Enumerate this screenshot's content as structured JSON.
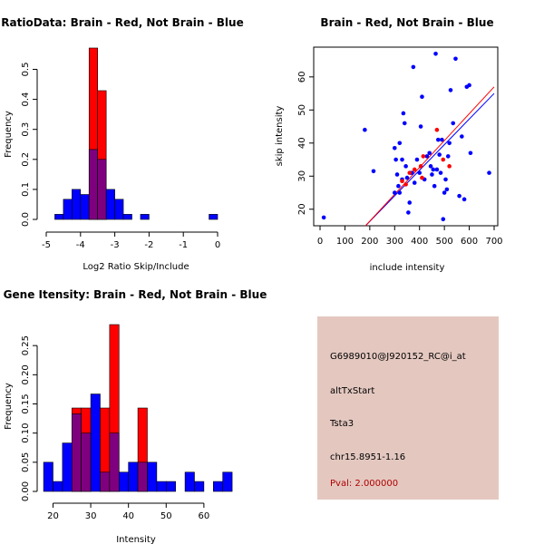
{
  "colors": {
    "brain": "#ff0000",
    "not_brain": "#0000ff",
    "overlap": "#7f007f",
    "info_bg": "#e4c8c0",
    "pval_text": "#b00000"
  },
  "chart_data": [
    {
      "type": "bar",
      "title": "RatioData: Brain - Red, Not Brain - Blue",
      "xlabel": "Log2 Ratio Skip/Include",
      "ylabel": "Frequency",
      "xlim": [
        -5,
        0
      ],
      "ylim": [
        0,
        0.58
      ],
      "xticks": [
        -5,
        -4,
        -3,
        -2,
        -1,
        0
      ],
      "yticks": [
        0.0,
        0.1,
        0.2,
        0.3,
        0.4,
        0.5
      ],
      "ytick_labels": [
        "0.0",
        "0.1",
        "0.2",
        "0.3",
        "0.4",
        "0.5"
      ],
      "bin_edges": [
        -4.75,
        -4.5,
        -4.25,
        -4.0,
        -3.75,
        -3.5,
        -3.25,
        -3.0,
        -2.75,
        -2.5,
        -2.25,
        -2.0,
        -1.75,
        -1.5,
        -1.25,
        -1.0,
        -0.75,
        -0.5,
        -0.25,
        0.0
      ],
      "series": [
        {
          "name": "Not Brain",
          "color": "blue",
          "values": [
            0.017,
            0.067,
            0.1,
            0.083,
            0.233,
            0.2,
            0.1,
            0.067,
            0.017,
            0,
            0.017,
            0,
            0,
            0,
            0,
            0,
            0,
            0,
            0.017
          ]
        },
        {
          "name": "Brain",
          "color": "red",
          "values": [
            0,
            0,
            0,
            0,
            0.571,
            0.429,
            0,
            0,
            0,
            0,
            0,
            0,
            0,
            0,
            0,
            0,
            0,
            0,
            0
          ]
        }
      ]
    },
    {
      "type": "scatter",
      "title": "Brain - Red, Not Brain - Blue",
      "xlabel": "include intensity",
      "ylabel": "skip intensity",
      "xlim": [
        0,
        700
      ],
      "ylim": [
        15,
        69
      ],
      "xticks": [
        0,
        100,
        200,
        300,
        400,
        500,
        600,
        700
      ],
      "yticks": [
        20,
        30,
        40,
        50,
        60
      ],
      "series": [
        {
          "name": "Not Brain",
          "color": "blue",
          "points": [
            [
              15,
              17.5
            ],
            [
              180,
              44
            ],
            [
              215,
              31.5
            ],
            [
              300,
              25
            ],
            [
              305,
              35
            ],
            [
              310,
              30.5
            ],
            [
              315,
              27
            ],
            [
              320,
              25
            ],
            [
              330,
              29
            ],
            [
              335,
              49
            ],
            [
              340,
              46
            ],
            [
              345,
              33
            ],
            [
              350,
              29.5
            ],
            [
              355,
              19
            ],
            [
              360,
              22
            ],
            [
              365,
              31
            ],
            [
              370,
              31
            ],
            [
              375,
              63
            ],
            [
              380,
              28
            ],
            [
              390,
              35
            ],
            [
              400,
              31
            ],
            [
              405,
              45
            ],
            [
              410,
              54
            ],
            [
              420,
              29
            ],
            [
              430,
              36
            ],
            [
              440,
              37
            ],
            [
              445,
              33
            ],
            [
              450,
              30.5
            ],
            [
              455,
              32
            ],
            [
              460,
              27
            ],
            [
              465,
              67
            ],
            [
              470,
              32
            ],
            [
              475,
              41
            ],
            [
              480,
              36.5
            ],
            [
              485,
              31
            ],
            [
              490,
              41
            ],
            [
              495,
              17
            ],
            [
              500,
              25
            ],
            [
              505,
              29
            ],
            [
              510,
              26
            ],
            [
              515,
              36
            ],
            [
              520,
              40
            ],
            [
              525,
              56
            ],
            [
              535,
              46
            ],
            [
              545,
              65.5
            ],
            [
              560,
              24
            ],
            [
              570,
              42
            ],
            [
              580,
              23
            ],
            [
              590,
              57
            ],
            [
              600,
              57.5
            ],
            [
              605,
              37
            ],
            [
              680,
              31
            ],
            [
              300,
              38.5
            ],
            [
              320,
              40
            ],
            [
              330,
              35
            ]
          ]
        },
        {
          "name": "Brain",
          "color": "red",
          "points": [
            [
              330,
              28.5
            ],
            [
              345,
              27.5
            ],
            [
              360,
              31
            ],
            [
              380,
              32
            ],
            [
              405,
              33
            ],
            [
              410,
              29.5
            ],
            [
              415,
              36
            ],
            [
              470,
              44
            ],
            [
              495,
              35
            ],
            [
              520,
              33
            ]
          ]
        }
      ],
      "lines": [
        {
          "name": "Not Brain fit",
          "color": "blue",
          "x": [
            183,
            700
          ],
          "y": [
            15,
            55
          ]
        },
        {
          "name": "Brain fit",
          "color": "red",
          "x": [
            183,
            700
          ],
          "y": [
            15,
            57
          ]
        }
      ]
    },
    {
      "type": "bar",
      "title": "Gene Itensity: Brain - Red, Not Brain - Blue",
      "xlabel": "Intensity",
      "ylabel": "Frequency",
      "xlim": [
        17,
        67
      ],
      "ylim": [
        0,
        0.3
      ],
      "xticks": [
        20,
        30,
        40,
        50,
        60
      ],
      "yticks": [
        0.0,
        0.05,
        0.1,
        0.15,
        0.2,
        0.25
      ],
      "ytick_labels": [
        "0.00",
        "0.05",
        "0.10",
        "0.15",
        "0.20",
        "0.25"
      ],
      "bin_edges": [
        17.5,
        20,
        22.5,
        25,
        27.5,
        30,
        32.5,
        35,
        37.5,
        40,
        42.5,
        45,
        47.5,
        50,
        52.5,
        55,
        57.5,
        60,
        62.5,
        65,
        67.5
      ],
      "series": [
        {
          "name": "Not Brain",
          "color": "blue",
          "values": [
            0.05,
            0.017,
            0.083,
            0.133,
            0.1,
            0.167,
            0.033,
            0.1,
            0.033,
            0.05,
            0.05,
            0.05,
            0.017,
            0.017,
            0,
            0.033,
            0.017,
            0,
            0.017,
            0.033
          ]
        },
        {
          "name": "Brain",
          "color": "red",
          "values": [
            0,
            0,
            0,
            0.143,
            0.143,
            0,
            0.143,
            0.286,
            0,
            0,
            0.143,
            0,
            0,
            0,
            0,
            0,
            0,
            0,
            0,
            0
          ]
        }
      ]
    }
  ],
  "info_panel": {
    "probe": "G6989010@J920152_RC@i_at",
    "event_type": "altTxStart",
    "gene": "Tsta3",
    "location": "chr15.8951-1.16",
    "pval": "Pval: 2.000000"
  }
}
